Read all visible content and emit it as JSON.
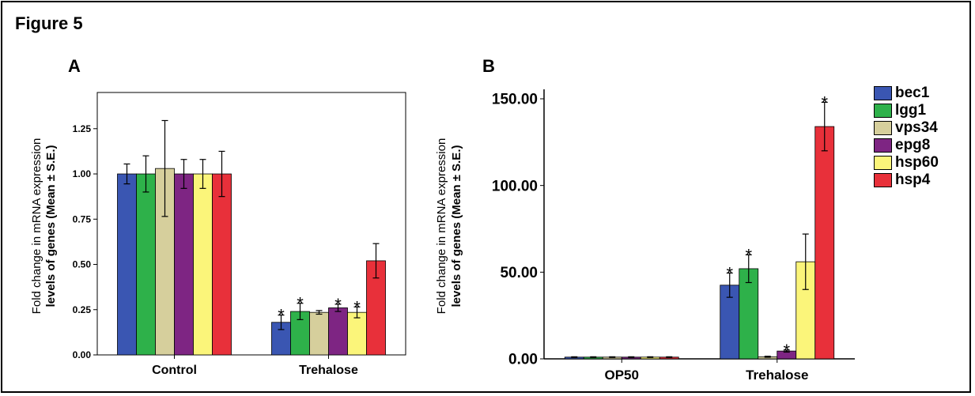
{
  "figure_title": "Figure 5",
  "legend": {
    "placement": "right",
    "items": [
      {
        "name": "bec1",
        "color": "#3a56b2"
      },
      {
        "name": "lgg1",
        "color": "#2eb14a"
      },
      {
        "name": "vps34",
        "color": "#d6cf9c"
      },
      {
        "name": "epg8",
        "color": "#7e2583"
      },
      {
        "name": "hsp60",
        "color": "#fbf57a"
      },
      {
        "name": "hsp4",
        "color": "#e8303a"
      }
    ]
  },
  "chart_data": [
    {
      "type": "bar",
      "panel_label": "A",
      "title": "",
      "xlabel": "",
      "ylabel_line1": "Fold change in mRNA expression",
      "ylabel_line2": "levels of genes (Mean ± S.E.)",
      "ylim": [
        0,
        1.45
      ],
      "yticks": [
        "0.00",
        "0.25",
        "0.50",
        "0.75",
        "1.00",
        "1.25"
      ],
      "grid": false,
      "categories": [
        "Control",
        "Trehalose"
      ],
      "series": [
        {
          "name": "bec1",
          "values": [
            1.0,
            0.18
          ],
          "errors": [
            0.055,
            0.04
          ],
          "significant": [
            false,
            true
          ]
        },
        {
          "name": "lgg1",
          "values": [
            1.0,
            0.24
          ],
          "errors": [
            0.1,
            0.045
          ],
          "significant": [
            false,
            true
          ]
        },
        {
          "name": "vps34",
          "values": [
            1.03,
            0.235
          ],
          "errors": [
            0.265,
            0.01
          ],
          "significant": [
            false,
            false
          ]
        },
        {
          "name": "epg8",
          "values": [
            1.0,
            0.26
          ],
          "errors": [
            0.08,
            0.02
          ],
          "significant": [
            false,
            true
          ]
        },
        {
          "name": "hsp60",
          "values": [
            1.0,
            0.235
          ],
          "errors": [
            0.08,
            0.03
          ],
          "significant": [
            false,
            true
          ]
        },
        {
          "name": "hsp4",
          "values": [
            1.0,
            0.52
          ],
          "errors": [
            0.125,
            0.095
          ],
          "significant": [
            false,
            false
          ]
        }
      ]
    },
    {
      "type": "bar",
      "panel_label": "B",
      "title": "",
      "xlabel": "",
      "ylabel_line1": "Fold change in mRNA expression",
      "ylabel_line2": "levels of genes (Mean ± S.E.)",
      "ylim": [
        0,
        150
      ],
      "yticks": [
        "0.00",
        "50.00",
        "100.00",
        "150.00"
      ],
      "grid": false,
      "categories": [
        "OP50",
        "Trehalose"
      ],
      "series": [
        {
          "name": "bec1",
          "values": [
            1.0,
            42.5
          ],
          "errors": [
            0.2,
            7
          ],
          "significant": [
            false,
            true
          ]
        },
        {
          "name": "lgg1",
          "values": [
            1.0,
            52
          ],
          "errors": [
            0.2,
            8
          ],
          "significant": [
            false,
            true
          ]
        },
        {
          "name": "vps34",
          "values": [
            1.0,
            1.2
          ],
          "errors": [
            0.2,
            0.3
          ],
          "significant": [
            false,
            false
          ]
        },
        {
          "name": "epg8",
          "values": [
            1.0,
            4.5
          ],
          "errors": [
            0.2,
            0.6
          ],
          "significant": [
            false,
            true
          ]
        },
        {
          "name": "hsp60",
          "values": [
            1.0,
            56
          ],
          "errors": [
            0.2,
            16
          ],
          "significant": [
            false,
            false
          ]
        },
        {
          "name": "hsp4",
          "values": [
            1.0,
            134
          ],
          "errors": [
            0.2,
            14
          ],
          "significant": [
            false,
            true
          ]
        }
      ]
    }
  ]
}
